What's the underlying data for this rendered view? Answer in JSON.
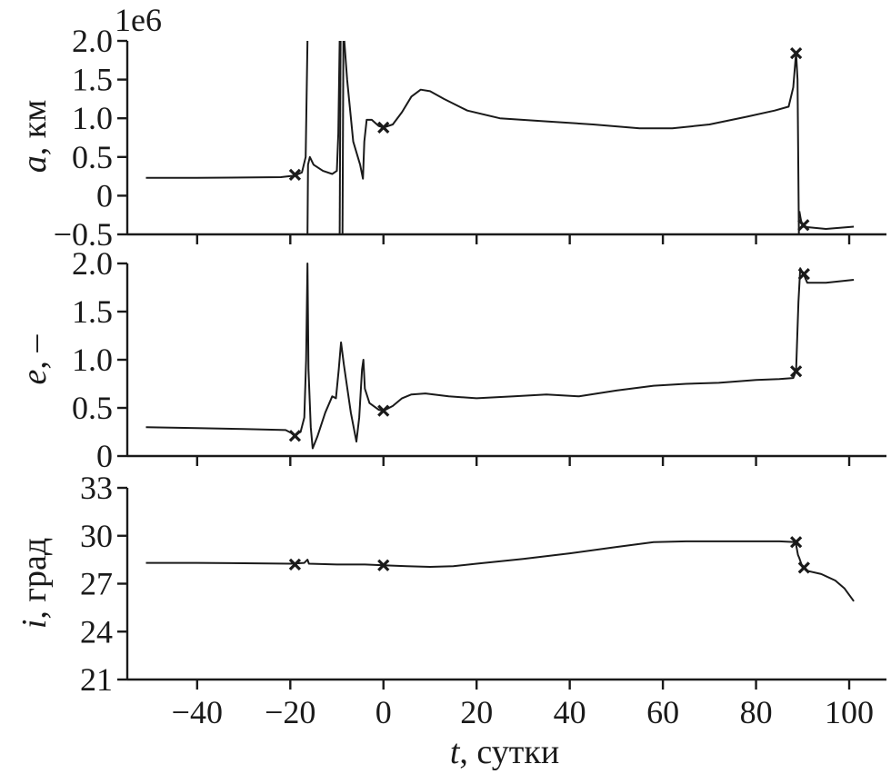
{
  "chart_data": [
    {
      "type": "line",
      "ylabel_symbol": "a",
      "ylabel_rest": ", км",
      "ylim": [
        -0.5,
        2.0
      ],
      "yticks": [
        -0.5,
        0,
        0.5,
        1.0,
        1.5,
        2.0
      ],
      "ytick_labels": [
        "−0.5",
        "0",
        "0.5",
        "1.0",
        "1.5",
        "2.0"
      ],
      "scale_label": "1e6",
      "series": [
        {
          "points": [
            [
              -51,
              0.23
            ],
            [
              -40,
              0.23
            ],
            [
              -30,
              0.235
            ],
            [
              -22,
              0.24
            ],
            [
              -19,
              0.26
            ],
            [
              -17.5,
              0.3
            ],
            [
              -16.7,
              0.5
            ],
            [
              -16.3,
              2.0
            ]
          ]
        },
        {
          "points": [
            [
              -16.3,
              -0.5
            ],
            [
              -16.2,
              0.4
            ],
            [
              -15.8,
              0.5
            ],
            [
              -15,
              0.4
            ],
            [
              -13,
              0.32
            ],
            [
              -11,
              0.28
            ],
            [
              -10,
              0.32
            ],
            [
              -9.7,
              0.8
            ],
            [
              -9.4,
              2.0
            ]
          ]
        },
        {
          "points": [
            [
              -9.4,
              -0.5
            ],
            [
              -9.2,
              2.0
            ]
          ]
        },
        {
          "points": [
            [
              -8.8,
              -0.5
            ],
            [
              -8.6,
              2.0
            ]
          ]
        },
        {
          "points": [
            [
              -8.4,
              2.0
            ],
            [
              -7.8,
              1.5
            ],
            [
              -6.5,
              0.7
            ],
            [
              -5,
              0.4
            ],
            [
              -4.4,
              0.22
            ],
            [
              -4.1,
              0.7
            ],
            [
              -3.6,
              0.98
            ],
            [
              -2.5,
              0.98
            ],
            [
              -1,
              0.9
            ],
            [
              0,
              0.88
            ],
            [
              2,
              0.92
            ],
            [
              4,
              1.08
            ],
            [
              6,
              1.28
            ],
            [
              8,
              1.37
            ],
            [
              10,
              1.35
            ],
            [
              13,
              1.25
            ],
            [
              18,
              1.1
            ],
            [
              25,
              1.0
            ],
            [
              35,
              0.96
            ],
            [
              45,
              0.92
            ],
            [
              55,
              0.87
            ],
            [
              62,
              0.87
            ],
            [
              70,
              0.92
            ],
            [
              78,
              1.02
            ],
            [
              84,
              1.1
            ],
            [
              87,
              1.15
            ],
            [
              88,
              1.4
            ],
            [
              88.6,
              1.85
            ],
            [
              88.9,
              1.5
            ],
            [
              89.2,
              -0.5
            ]
          ]
        },
        {
          "points": [
            [
              89.3,
              -0.2
            ],
            [
              89.6,
              -0.3
            ],
            [
              90,
              -0.4
            ],
            [
              95,
              -0.43
            ],
            [
              101,
              -0.4
            ]
          ]
        }
      ],
      "markers": [
        [
          -19,
          0.27
        ],
        [
          0,
          0.88
        ],
        [
          88.6,
          1.84
        ],
        [
          90.2,
          -0.38
        ]
      ]
    },
    {
      "type": "line",
      "ylabel_symbol": "e",
      "ylabel_rest": ", –",
      "ylim": [
        0,
        2.0
      ],
      "yticks": [
        0,
        0.5,
        1.0,
        1.5,
        2.0
      ],
      "ytick_labels": [
        "0",
        "0.5",
        "1.0",
        "1.5",
        "2.0"
      ],
      "series": [
        {
          "points": [
            [
              -51,
              0.3
            ],
            [
              -40,
              0.29
            ],
            [
              -30,
              0.28
            ],
            [
              -21,
              0.27
            ],
            [
              -19,
              0.22
            ],
            [
              -17.8,
              0.25
            ],
            [
              -17,
              0.4
            ],
            [
              -16.6,
              1.0
            ],
            [
              -16.3,
              2.0
            ],
            [
              -16.1,
              0.9
            ],
            [
              -15.6,
              0.3
            ],
            [
              -15.2,
              0.08
            ],
            [
              -14.2,
              0.2
            ],
            [
              -12.5,
              0.45
            ],
            [
              -11,
              0.62
            ],
            [
              -10.2,
              0.6
            ],
            [
              -9.6,
              0.9
            ],
            [
              -9.1,
              1.18
            ],
            [
              -8.5,
              0.95
            ],
            [
              -7,
              0.45
            ],
            [
              -5.8,
              0.15
            ],
            [
              -5.2,
              0.4
            ],
            [
              -4.6,
              0.9
            ],
            [
              -4.3,
              1.0
            ],
            [
              -4,
              0.7
            ],
            [
              -3,
              0.55
            ],
            [
              -1,
              0.48
            ],
            [
              0,
              0.47
            ],
            [
              2,
              0.52
            ],
            [
              4,
              0.6
            ],
            [
              6,
              0.64
            ],
            [
              9,
              0.65
            ],
            [
              14,
              0.62
            ],
            [
              20,
              0.6
            ],
            [
              28,
              0.62
            ],
            [
              35,
              0.64
            ],
            [
              42,
              0.62
            ],
            [
              50,
              0.68
            ],
            [
              58,
              0.73
            ],
            [
              65,
              0.75
            ],
            [
              72,
              0.76
            ],
            [
              80,
              0.79
            ],
            [
              85,
              0.8
            ],
            [
              88,
              0.81
            ],
            [
              88.6,
              0.88
            ],
            [
              89.1,
              1.6
            ],
            [
              89.5,
              1.95
            ],
            [
              90.3,
              1.88
            ],
            [
              91,
              1.8
            ],
            [
              95,
              1.8
            ],
            [
              101,
              1.83
            ]
          ]
        }
      ],
      "markers": [
        [
          -19,
          0.21
        ],
        [
          0,
          0.47
        ],
        [
          88.6,
          0.88
        ],
        [
          90.3,
          1.89
        ]
      ]
    },
    {
      "type": "line",
      "ylabel_symbol": "i",
      "ylabel_rest": ", град",
      "ylim": [
        21,
        33
      ],
      "yticks": [
        21,
        24,
        27,
        30,
        33
      ],
      "ytick_labels": [
        "21",
        "24",
        "27",
        "30",
        "33"
      ],
      "series": [
        {
          "points": [
            [
              -51,
              28.3
            ],
            [
              -40,
              28.3
            ],
            [
              -30,
              28.28
            ],
            [
              -20,
              28.25
            ],
            [
              -17,
              28.3
            ],
            [
              -16.3,
              28.5
            ],
            [
              -16,
              28.25
            ],
            [
              -10,
              28.2
            ],
            [
              -4,
              28.2
            ],
            [
              0,
              28.15
            ],
            [
              5,
              28.1
            ],
            [
              10,
              28.05
            ],
            [
              15,
              28.1
            ],
            [
              20,
              28.25
            ],
            [
              30,
              28.55
            ],
            [
              40,
              28.9
            ],
            [
              50,
              29.3
            ],
            [
              58,
              29.6
            ],
            [
              65,
              29.65
            ],
            [
              75,
              29.65
            ],
            [
              85,
              29.65
            ],
            [
              88.5,
              29.6
            ],
            [
              89,
              28.8
            ],
            [
              89.3,
              28.6
            ],
            [
              90,
              28.0
            ],
            [
              91,
              27.8
            ],
            [
              94,
              27.6
            ],
            [
              97,
              27.2
            ],
            [
              99,
              26.7
            ],
            [
              101,
              25.9
            ]
          ]
        }
      ],
      "markers": [
        [
          -19,
          28.2
        ],
        [
          0,
          28.15
        ],
        [
          88.6,
          29.6
        ],
        [
          90.3,
          28.0
        ]
      ]
    }
  ],
  "x_axis": {
    "xlim": [
      -55,
      108
    ],
    "xticks": [
      -40,
      -20,
      0,
      20,
      40,
      60,
      80,
      100
    ],
    "xtick_labels": [
      "−40",
      "−20",
      "0",
      "20",
      "40",
      "60",
      "80",
      "100"
    ],
    "xlabel_symbol": "t",
    "xlabel_rest": ", сутки"
  }
}
